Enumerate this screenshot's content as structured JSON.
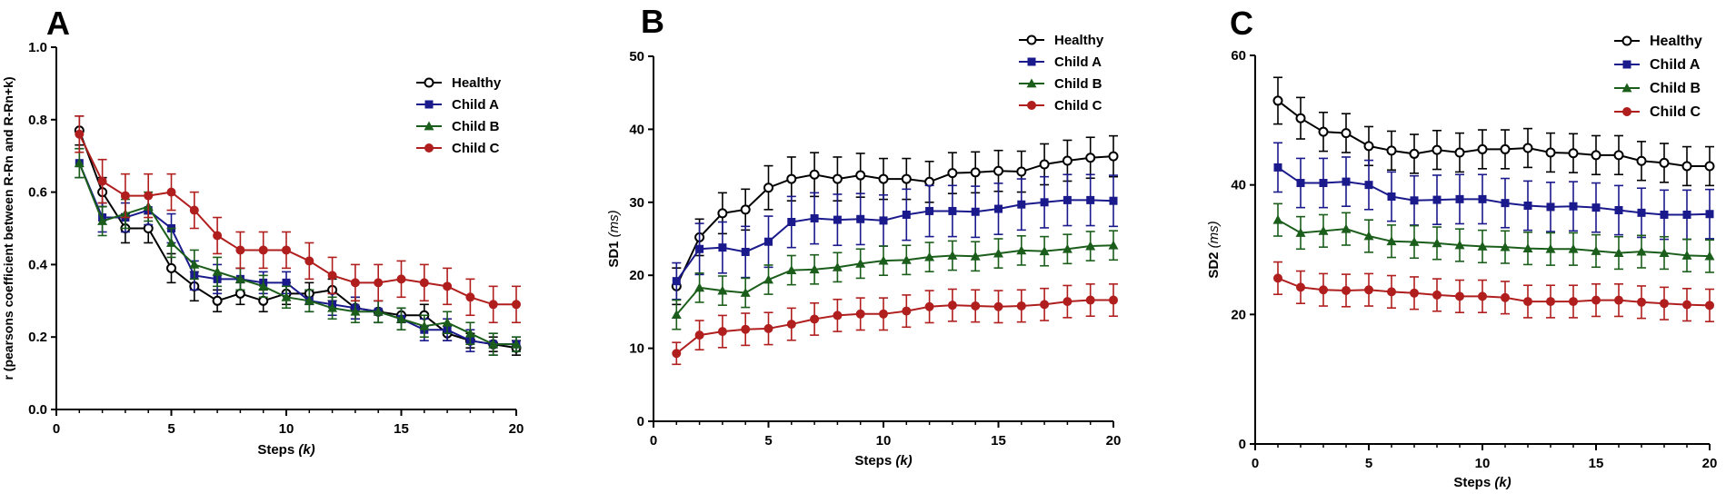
{
  "chart_data": [
    {
      "panel_label": "A",
      "type": "line",
      "title": "",
      "xlabel": "Steps",
      "xlabel_var": "(k)",
      "ylabel": "r (pearsons coefficient between R-Rn and R-Rn+k)",
      "ylabel_unit": "",
      "xlim": [
        0,
        20
      ],
      "ylim": [
        0,
        1.0
      ],
      "x_ticks": [
        0,
        5,
        10,
        15,
        20
      ],
      "y_ticks": [
        0.0,
        0.2,
        0.4,
        0.6,
        0.8,
        1.0
      ],
      "y_tick_labels": [
        "0.0",
        "0.2",
        "0.4",
        "0.6",
        "0.8",
        "1.0"
      ],
      "grid": false,
      "legend_position": "top-right",
      "x": [
        1,
        2,
        3,
        4,
        5,
        6,
        7,
        8,
        9,
        10,
        11,
        12,
        13,
        14,
        15,
        16,
        17,
        18,
        19,
        20
      ],
      "series": [
        {
          "name": "Healthy",
          "marker": "open-circle",
          "color": "#000000",
          "values": [
            0.77,
            0.6,
            0.5,
            0.5,
            0.39,
            0.34,
            0.3,
            0.32,
            0.3,
            0.32,
            0.32,
            0.33,
            0.28,
            0.27,
            0.26,
            0.26,
            0.21,
            0.19,
            0.18,
            0.17
          ],
          "errors": [
            0.04,
            0.04,
            0.04,
            0.04,
            0.04,
            0.04,
            0.03,
            0.03,
            0.03,
            0.03,
            0.03,
            0.03,
            0.03,
            0.03,
            0.02,
            0.03,
            0.02,
            0.02,
            0.02,
            0.02
          ]
        },
        {
          "name": "Child A",
          "marker": "square",
          "color": "#1a1a8c",
          "values": [
            0.68,
            0.53,
            0.53,
            0.55,
            0.5,
            0.37,
            0.36,
            0.36,
            0.35,
            0.35,
            0.3,
            0.29,
            0.28,
            0.27,
            0.25,
            0.22,
            0.22,
            0.19,
            0.18,
            0.18
          ],
          "errors": [
            0.04,
            0.04,
            0.04,
            0.04,
            0.04,
            0.04,
            0.04,
            0.03,
            0.03,
            0.03,
            0.03,
            0.03,
            0.03,
            0.03,
            0.03,
            0.03,
            0.03,
            0.03,
            0.03,
            0.02
          ]
        },
        {
          "name": "Child B",
          "marker": "triangle",
          "color": "#1b5e1b",
          "values": [
            0.68,
            0.52,
            0.54,
            0.56,
            0.46,
            0.4,
            0.38,
            0.36,
            0.34,
            0.31,
            0.3,
            0.28,
            0.27,
            0.27,
            0.25,
            0.23,
            0.24,
            0.21,
            0.18,
            0.18
          ],
          "errors": [
            0.04,
            0.04,
            0.04,
            0.04,
            0.04,
            0.04,
            0.04,
            0.03,
            0.03,
            0.03,
            0.03,
            0.03,
            0.03,
            0.03,
            0.03,
            0.03,
            0.03,
            0.03,
            0.03,
            0.02
          ]
        },
        {
          "name": "Child C",
          "marker": "filled-circle",
          "color": "#b01e1e",
          "values": [
            0.76,
            0.63,
            0.59,
            0.59,
            0.6,
            0.55,
            0.48,
            0.44,
            0.44,
            0.44,
            0.41,
            0.37,
            0.35,
            0.35,
            0.36,
            0.35,
            0.34,
            0.31,
            0.29,
            0.29
          ],
          "errors": [
            0.05,
            0.06,
            0.06,
            0.06,
            0.05,
            0.05,
            0.05,
            0.05,
            0.05,
            0.05,
            0.05,
            0.05,
            0.05,
            0.05,
            0.05,
            0.05,
            0.05,
            0.05,
            0.05,
            0.05
          ]
        }
      ]
    },
    {
      "panel_label": "B",
      "type": "line",
      "title": "",
      "xlabel": "Steps",
      "xlabel_var": "(k)",
      "ylabel": "SD1",
      "ylabel_unit": "(ms)",
      "xlim": [
        0,
        20
      ],
      "ylim": [
        0,
        50
      ],
      "x_ticks": [
        0,
        5,
        10,
        15,
        20
      ],
      "y_ticks": [
        0,
        10,
        20,
        30,
        40,
        50
      ],
      "y_tick_labels": [
        "0",
        "10",
        "20",
        "30",
        "40",
        "50"
      ],
      "grid": false,
      "legend_position": "top-right",
      "x": [
        1,
        2,
        3,
        4,
        5,
        6,
        7,
        8,
        9,
        10,
        11,
        12,
        13,
        14,
        15,
        16,
        17,
        18,
        19,
        20
      ],
      "series": [
        {
          "name": "Healthy",
          "marker": "open-circle",
          "color": "#000000",
          "values": [
            18.5,
            25.2,
            28.5,
            29.0,
            32.0,
            33.2,
            33.8,
            33.2,
            33.7,
            33.2,
            33.2,
            32.8,
            34.0,
            34.1,
            34.3,
            34.2,
            35.2,
            35.7,
            36.1,
            36.3
          ],
          "errors": [
            2.5,
            2.5,
            2.8,
            2.8,
            3.0,
            3.0,
            3.0,
            3.0,
            3.0,
            2.8,
            2.8,
            2.8,
            2.8,
            2.8,
            2.8,
            2.8,
            2.8,
            2.8,
            2.8,
            2.8
          ]
        },
        {
          "name": "Child A",
          "marker": "square",
          "color": "#1a1a8c",
          "values": [
            19.2,
            23.6,
            23.8,
            23.2,
            24.6,
            27.3,
            27.8,
            27.6,
            27.7,
            27.5,
            28.3,
            28.8,
            28.8,
            28.7,
            29.1,
            29.7,
            30.0,
            30.3,
            30.3,
            30.2
          ],
          "errors": [
            2.5,
            3.5,
            3.5,
            3.5,
            3.5,
            3.5,
            3.5,
            3.5,
            3.5,
            3.5,
            3.5,
            3.5,
            3.5,
            3.5,
            3.5,
            3.5,
            3.5,
            3.5,
            3.5,
            3.5
          ]
        },
        {
          "name": "Child B",
          "marker": "triangle",
          "color": "#1b5e1b",
          "values": [
            14.6,
            18.3,
            17.9,
            17.6,
            19.4,
            20.7,
            20.8,
            21.1,
            21.6,
            22.0,
            22.1,
            22.5,
            22.7,
            22.6,
            23.0,
            23.4,
            23.3,
            23.6,
            24.0,
            24.1
          ],
          "errors": [
            2.0,
            2.0,
            2.0,
            2.0,
            2.0,
            2.0,
            2.0,
            2.0,
            2.0,
            2.0,
            2.0,
            2.0,
            2.0,
            2.0,
            2.0,
            2.0,
            2.0,
            2.0,
            2.0,
            2.0
          ]
        },
        {
          "name": "Child C",
          "marker": "filled-circle",
          "color": "#b01e1e",
          "values": [
            9.3,
            11.8,
            12.3,
            12.6,
            12.7,
            13.3,
            14.0,
            14.5,
            14.7,
            14.7,
            15.1,
            15.7,
            15.9,
            15.8,
            15.7,
            15.8,
            16.0,
            16.4,
            16.6,
            16.6
          ],
          "errors": [
            1.5,
            2.0,
            2.2,
            2.2,
            2.2,
            2.2,
            2.2,
            2.2,
            2.2,
            2.2,
            2.2,
            2.2,
            2.2,
            2.2,
            2.2,
            2.2,
            2.2,
            2.2,
            2.2,
            2.2
          ]
        }
      ]
    },
    {
      "panel_label": "C",
      "type": "line",
      "title": "",
      "xlabel": "Steps",
      "xlabel_var": "(k)",
      "ylabel": "SD2",
      "ylabel_unit": "(ms)",
      "xlim": [
        0,
        20
      ],
      "ylim": [
        0,
        60
      ],
      "x_ticks": [
        0,
        5,
        10,
        15,
        20
      ],
      "y_ticks": [
        0,
        20,
        40,
        60
      ],
      "y_tick_labels": [
        "0",
        "20",
        "40",
        "60"
      ],
      "grid": false,
      "legend_position": "top-right",
      "x": [
        1,
        2,
        3,
        4,
        5,
        6,
        7,
        8,
        9,
        10,
        11,
        12,
        13,
        14,
        15,
        16,
        17,
        18,
        19,
        20
      ],
      "series": [
        {
          "name": "Healthy",
          "marker": "open-circle",
          "color": "#000000",
          "values": [
            53.0,
            50.3,
            48.2,
            48.0,
            46.0,
            45.3,
            44.8,
            45.4,
            45.0,
            45.5,
            45.5,
            45.7,
            45.0,
            44.9,
            44.6,
            44.6,
            43.7,
            43.4,
            42.9,
            42.9
          ],
          "errors": [
            3.6,
            3.2,
            3.0,
            3.0,
            3.0,
            3.0,
            3.0,
            3.0,
            3.0,
            3.0,
            3.0,
            3.0,
            3.0,
            3.0,
            3.0,
            3.0,
            3.0,
            3.0,
            3.0,
            3.0
          ]
        },
        {
          "name": "Child A",
          "marker": "square",
          "color": "#1a1a8c",
          "values": [
            42.7,
            40.3,
            40.3,
            40.5,
            40.0,
            38.2,
            37.6,
            37.7,
            37.8,
            37.8,
            37.2,
            36.8,
            36.6,
            36.7,
            36.5,
            36.1,
            35.7,
            35.4,
            35.4,
            35.5
          ],
          "errors": [
            3.8,
            3.8,
            3.8,
            3.8,
            3.8,
            3.8,
            3.8,
            3.8,
            3.8,
            3.8,
            3.8,
            3.8,
            3.8,
            3.8,
            3.8,
            3.8,
            3.8,
            3.8,
            3.8,
            3.8
          ]
        },
        {
          "name": "Child B",
          "marker": "triangle",
          "color": "#1b5e1b",
          "values": [
            34.6,
            32.6,
            32.9,
            33.2,
            32.1,
            31.3,
            31.2,
            31.0,
            30.7,
            30.5,
            30.4,
            30.2,
            30.1,
            30.1,
            29.8,
            29.5,
            29.7,
            29.5,
            29.1,
            29.0
          ],
          "errors": [
            2.5,
            2.5,
            2.5,
            2.5,
            2.5,
            2.5,
            2.5,
            2.5,
            2.5,
            2.5,
            2.5,
            2.5,
            2.5,
            2.5,
            2.5,
            2.5,
            2.5,
            2.5,
            2.5,
            2.5
          ]
        },
        {
          "name": "Child C",
          "marker": "filled-circle",
          "color": "#b01e1e",
          "values": [
            25.6,
            24.2,
            23.8,
            23.7,
            23.8,
            23.5,
            23.3,
            23.0,
            22.8,
            22.8,
            22.6,
            22.0,
            22.0,
            22.0,
            22.2,
            22.2,
            21.9,
            21.7,
            21.5,
            21.4
          ],
          "errors": [
            2.5,
            2.5,
            2.5,
            2.5,
            2.5,
            2.5,
            2.5,
            2.5,
            2.5,
            2.5,
            2.5,
            2.5,
            2.5,
            2.5,
            2.5,
            2.5,
            2.5,
            2.5,
            2.5,
            2.5
          ]
        }
      ]
    }
  ]
}
